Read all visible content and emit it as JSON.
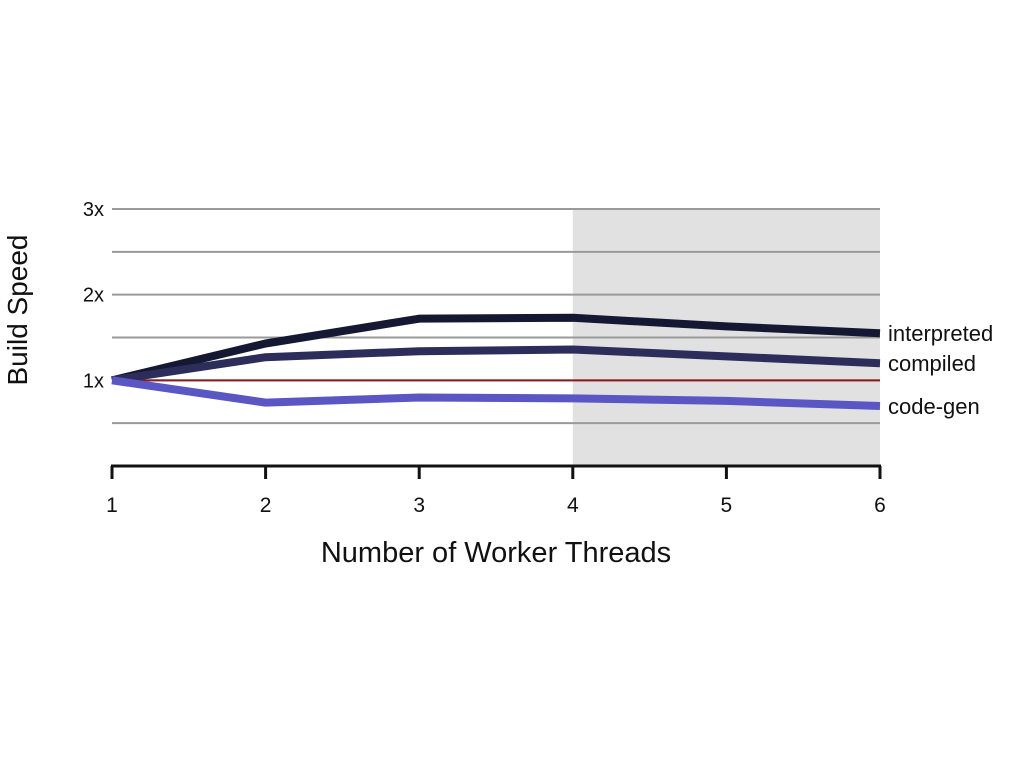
{
  "chart_data": {
    "type": "line",
    "title": "",
    "xlabel": "Number of Worker Threads",
    "ylabel": "Build Speed",
    "x": [
      1,
      2,
      3,
      4,
      5,
      6
    ],
    "x_tick_labels": [
      "1",
      "2",
      "3",
      "4",
      "5",
      "6"
    ],
    "xlim": [
      1,
      6
    ],
    "ylim": [
      0,
      3
    ],
    "y_ticks": [
      {
        "value": 3,
        "label": "3x"
      },
      {
        "value": 2.5,
        "label": ""
      },
      {
        "value": 2,
        "label": "2x"
      },
      {
        "value": 1.5,
        "label": ""
      },
      {
        "value": 1,
        "label": "1x"
      },
      {
        "value": 0.5,
        "label": ""
      }
    ],
    "grid": "horizontal",
    "shaded_region": {
      "x_from": 4,
      "x_to": 6,
      "color": "#e1e1e1"
    },
    "reference_line": {
      "y": 1,
      "color": "#8b1a1a"
    },
    "legend": "direct labels at right end of lines",
    "series": [
      {
        "name": "interpreted",
        "color": "#151832",
        "values": [
          1.0,
          1.43,
          1.72,
          1.73,
          1.63,
          1.55
        ]
      },
      {
        "name": "compiled",
        "color": "#2d2d5c",
        "values": [
          1.0,
          1.27,
          1.34,
          1.36,
          1.28,
          1.2
        ]
      },
      {
        "name": "code-gen",
        "color": "#5a56c4",
        "values": [
          1.0,
          0.74,
          0.8,
          0.79,
          0.76,
          0.7
        ]
      }
    ]
  }
}
